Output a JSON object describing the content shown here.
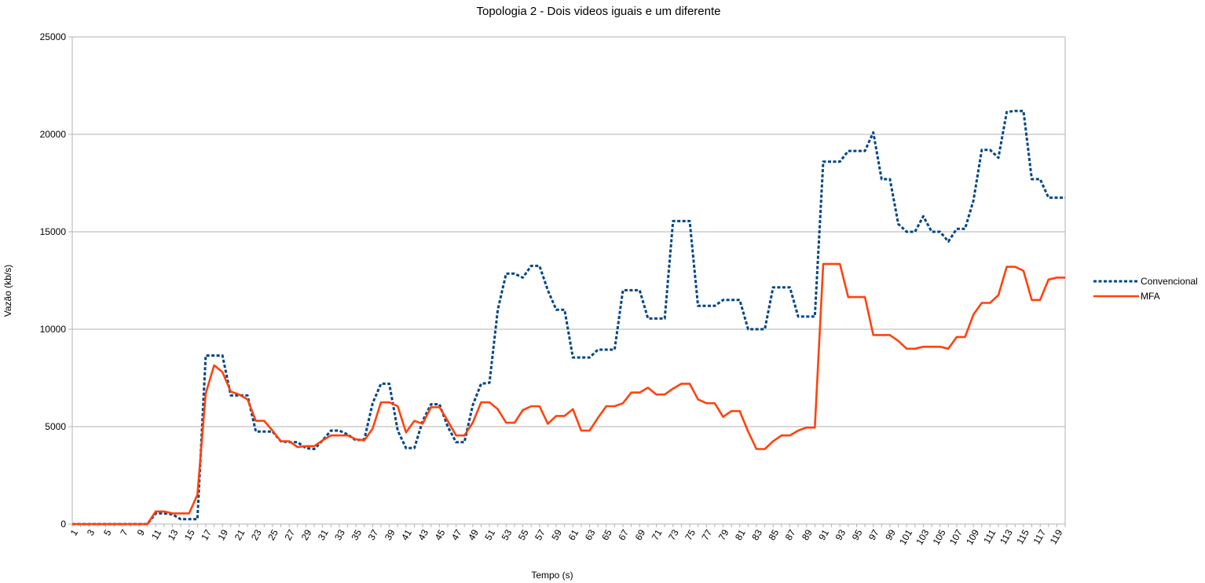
{
  "chart_data": {
    "type": "line",
    "title": "Topologia 2 - Dois videos iguais e um diferente",
    "xlabel": "Tempo (s)",
    "ylabel": "Vazão (kb/s)",
    "ylim": [
      0,
      25000
    ],
    "yticks": [
      0,
      5000,
      10000,
      15000,
      20000,
      25000
    ],
    "x_tick_labels": [
      "1",
      "3",
      "5",
      "7",
      "9",
      "11",
      "13",
      "15",
      "17",
      "19",
      "21",
      "23",
      "25",
      "27",
      "29",
      "31",
      "33",
      "35",
      "37",
      "39",
      "41",
      "43",
      "45",
      "47",
      "49",
      "51",
      "53",
      "55",
      "57",
      "59",
      "61",
      "63",
      "65",
      "67",
      "69",
      "71",
      "73",
      "75",
      "77",
      "79",
      "81",
      "83",
      "85",
      "87",
      "89",
      "91",
      "93",
      "95",
      "97",
      "99",
      "101",
      "103",
      "105",
      "107",
      "109",
      "111",
      "113",
      "115",
      "117",
      "119"
    ],
    "grid": true,
    "legend_position": "right",
    "x": [
      1,
      2,
      3,
      4,
      5,
      6,
      7,
      8,
      9,
      10,
      11,
      12,
      13,
      14,
      15,
      16,
      17,
      18,
      19,
      20,
      21,
      22,
      23,
      24,
      25,
      26,
      27,
      28,
      29,
      30,
      31,
      32,
      33,
      34,
      35,
      36,
      37,
      38,
      39,
      40,
      41,
      42,
      43,
      44,
      45,
      46,
      47,
      48,
      49,
      50,
      51,
      52,
      53,
      54,
      55,
      56,
      57,
      58,
      59,
      60,
      61,
      62,
      63,
      64,
      65,
      66,
      67,
      68,
      69,
      70,
      71,
      72,
      73,
      74,
      75,
      76,
      77,
      78,
      79,
      80,
      81,
      82,
      83,
      84,
      85,
      86,
      87,
      88,
      89,
      90,
      91,
      92,
      93,
      94,
      95,
      96,
      97,
      98,
      99,
      100,
      101,
      102,
      103,
      104,
      105,
      106,
      107,
      108,
      109,
      110,
      111,
      112,
      113,
      114,
      115,
      116,
      117,
      118,
      119,
      120
    ],
    "series": [
      {
        "name": "Convencional",
        "color": "#004586",
        "style": "dashed",
        "values": [
          0,
          0,
          0,
          0,
          0,
          0,
          0,
          0,
          0,
          0,
          550,
          550,
          500,
          250,
          250,
          250,
          8650,
          8650,
          8650,
          6600,
          6600,
          6600,
          4750,
          4750,
          4750,
          4250,
          4200,
          4200,
          3900,
          3850,
          4300,
          4800,
          4800,
          4600,
          4300,
          4350,
          6200,
          7200,
          7200,
          4800,
          3900,
          3900,
          5300,
          6150,
          6150,
          5000,
          4200,
          4200,
          6100,
          7200,
          7250,
          11000,
          12850,
          12850,
          12650,
          13250,
          13250,
          12000,
          11000,
          11000,
          8550,
          8550,
          8550,
          8950,
          8950,
          8950,
          12000,
          12000,
          12000,
          10550,
          10550,
          10550,
          15550,
          15550,
          15550,
          11200,
          11200,
          11200,
          11500,
          11500,
          11500,
          10000,
          10000,
          10000,
          12150,
          12150,
          12150,
          10650,
          10650,
          10650,
          18600,
          18600,
          18600,
          19150,
          19150,
          19150,
          20100,
          17700,
          17700,
          15400,
          15000,
          15000,
          15800,
          15000,
          15000,
          14500,
          15150,
          15150,
          16600,
          19200,
          19200,
          18800,
          21150,
          21200,
          21200,
          17700,
          17700,
          16750,
          16750,
          16750
        ]
      },
      {
        "name": "MFA",
        "color": "#ff420e",
        "style": "solid",
        "values": [
          0,
          0,
          0,
          0,
          0,
          0,
          0,
          0,
          0,
          0,
          650,
          650,
          550,
          550,
          550,
          1500,
          6700,
          8150,
          7800,
          6800,
          6650,
          6400,
          5300,
          5300,
          4800,
          4250,
          4250,
          3950,
          4000,
          4000,
          4300,
          4550,
          4550,
          4550,
          4350,
          4300,
          4900,
          6250,
          6250,
          6050,
          4700,
          5300,
          5150,
          6000,
          6000,
          5300,
          4550,
          4550,
          5200,
          6250,
          6250,
          5900,
          5200,
          5200,
          5850,
          6050,
          6050,
          5150,
          5550,
          5550,
          5900,
          4800,
          4800,
          5450,
          6050,
          6050,
          6200,
          6750,
          6750,
          7000,
          6650,
          6650,
          6950,
          7200,
          7200,
          6400,
          6200,
          6200,
          5500,
          5800,
          5800,
          4750,
          3850,
          3850,
          4250,
          4550,
          4550,
          4800,
          4950,
          4950,
          13350,
          13350,
          13350,
          11650,
          11650,
          11650,
          9700,
          9700,
          9700,
          9400,
          9000,
          9000,
          9100,
          9100,
          9100,
          9000,
          9600,
          9600,
          10750,
          11350,
          11350,
          11750,
          13200,
          13200,
          13000,
          11500,
          11500,
          12550,
          12650,
          12650
        ]
      }
    ]
  }
}
